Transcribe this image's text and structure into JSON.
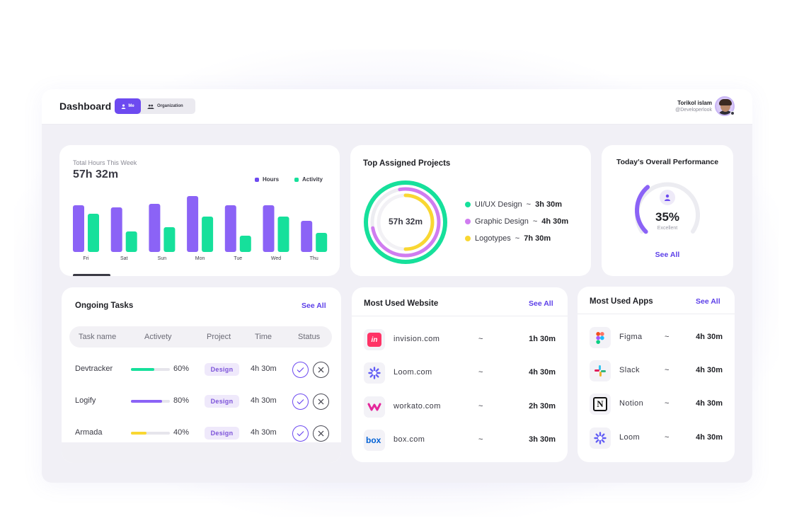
{
  "header": {
    "title": "Dashboard",
    "seg_me": "Me",
    "seg_org": "Organization",
    "user_name": "Torikol islam",
    "user_handle": "@Developerlook"
  },
  "hours": {
    "label": "Total Hours This Week",
    "value": "57h 32m",
    "legend_hours": "Hours",
    "legend_activity": "Activity",
    "colors": {
      "hours": "#8b63f6",
      "activity": "#16e09b"
    }
  },
  "chart_data": {
    "type": "bar",
    "title": "Total Hours This Week",
    "categories": [
      "Fri",
      "Sat",
      "Sun",
      "Mon",
      "Tue",
      "Wed",
      "Thu"
    ],
    "series": [
      {
        "name": "Hours",
        "values": [
          66,
          63,
          68,
          79,
          66,
          66,
          44
        ]
      },
      {
        "name": "Activity",
        "values": [
          54,
          29,
          35,
          50,
          23,
          50,
          27
        ]
      }
    ],
    "ylim": [
      0,
      100
    ],
    "grid": false,
    "legend": "top-right"
  },
  "projects": {
    "title": "Top Assigned Projects",
    "center": "57h 32m",
    "items": [
      {
        "name": "UI/UX Design",
        "sep": "~",
        "time": "3h 30m",
        "color": "#16e09b"
      },
      {
        "name": "Graphic Design",
        "sep": "~",
        "time": "4h 30m",
        "color": "#d07cf0"
      },
      {
        "name": "Logotypes",
        "sep": "~",
        "time": "7h 30m",
        "color": "#f9d732"
      }
    ]
  },
  "performance": {
    "title": "Today's Overall Performance",
    "value": "35%",
    "percent": 35,
    "label": "Excellent",
    "see_all": "See All",
    "color": "#8b63f6"
  },
  "tasks": {
    "title": "Ongoing Tasks",
    "see_all": "See All",
    "headers": [
      "Task name",
      "Activety",
      "Project",
      "Time",
      "Status"
    ],
    "rows": [
      {
        "name": "Devtracker",
        "pct": "60%",
        "progress": 0.6,
        "color": "#16e09b",
        "tag": "Design",
        "time": "4h 30m"
      },
      {
        "name": "Logify",
        "pct": "80%",
        "progress": 0.8,
        "color": "#8b63f6",
        "tag": "Design",
        "time": "4h 30m"
      },
      {
        "name": "Armada",
        "pct": "40%",
        "progress": 0.4,
        "color": "#f9d732",
        "tag": "Design",
        "time": "4h 30m"
      }
    ]
  },
  "websites": {
    "title": "Most Used Website",
    "see_all": "See All",
    "rows": [
      {
        "name": "invision.com",
        "sep": "~",
        "time": "1h 30m",
        "icon": "invision-icon"
      },
      {
        "name": "Loom.com",
        "sep": "~",
        "time": "4h 30m",
        "icon": "loom-icon"
      },
      {
        "name": "workato.com",
        "sep": "~",
        "time": "2h 30m",
        "icon": "workato-icon"
      },
      {
        "name": "box.com",
        "sep": "~",
        "time": "3h 30m",
        "icon": "box-icon"
      }
    ]
  },
  "apps": {
    "title": "Most Used Apps",
    "see_all": "See All",
    "rows": [
      {
        "name": "Figma",
        "sep": "~",
        "time": "4h 30m",
        "icon": "figma-icon"
      },
      {
        "name": "Slack",
        "sep": "~",
        "time": "4h 30m",
        "icon": "slack-icon"
      },
      {
        "name": "Notion",
        "sep": "~",
        "time": "4h 30m",
        "icon": "notion-icon"
      },
      {
        "name": "Loom",
        "sep": "~",
        "time": "4h 30m",
        "icon": "loom-icon"
      }
    ]
  }
}
